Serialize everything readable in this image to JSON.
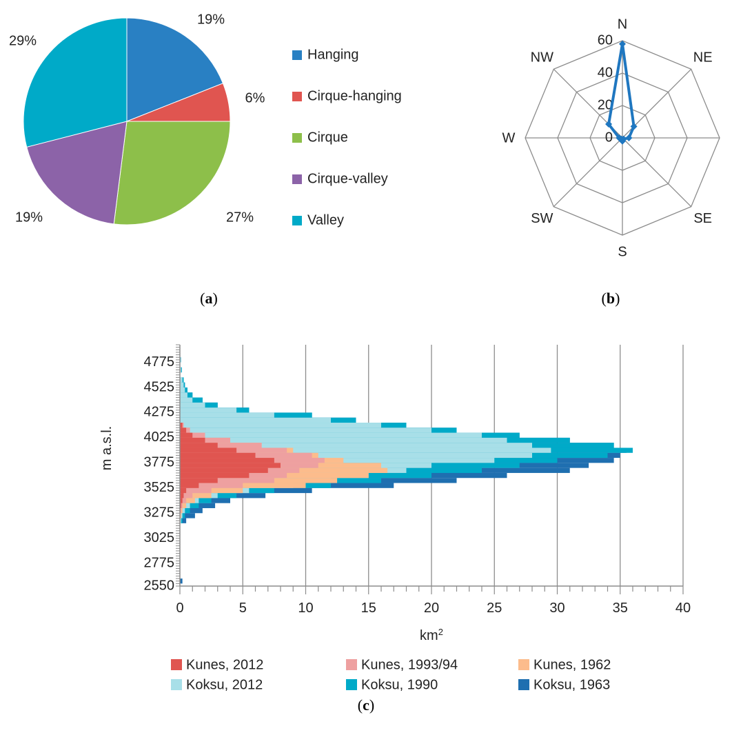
{
  "chart_data": [
    {
      "panel": "(a)",
      "type": "pie",
      "title": "",
      "series": [
        {
          "name": "Hanging",
          "value": 19,
          "label": "19%",
          "color": "#2980c3"
        },
        {
          "name": "Cirque-hanging",
          "value": 6,
          "label": "6%",
          "color": "#e05550"
        },
        {
          "name": "Cirque",
          "value": 27,
          "label": "27%",
          "color": "#8dbf4a"
        },
        {
          "name": "Cirque-valley",
          "value": 19,
          "label": "19%",
          "color": "#8c63a8"
        },
        {
          "name": "Valley",
          "value": 29,
          "label": "29%",
          "color": "#00aac8"
        }
      ],
      "legend_position": "right"
    },
    {
      "panel": "(b)",
      "type": "radar",
      "title": "",
      "categories": [
        "N",
        "NE",
        "E",
        "SE",
        "S",
        "SW",
        "W",
        "NW"
      ],
      "values": [
        58,
        10,
        4,
        1,
        2,
        1,
        2,
        12
      ],
      "range": [
        0,
        60
      ],
      "ticks": [
        "0",
        "20",
        "40",
        "60"
      ],
      "line_color": "#1f77c0"
    },
    {
      "panel": "(c)",
      "type": "bar",
      "orientation": "horizontal",
      "title": "",
      "xlabel": "km",
      "xlabel_sup": "2",
      "ylabel": "m a.s.l.",
      "xlim": [
        0,
        40
      ],
      "ylim": [
        2550,
        4950
      ],
      "xticks": [
        "0",
        "5",
        "10",
        "15",
        "20",
        "25",
        "30",
        "35",
        "40"
      ],
      "yticks": [
        "4775",
        "4525",
        "4275",
        "4025",
        "3775",
        "3525",
        "3275",
        "3025",
        "2775",
        "2550"
      ],
      "grid": "vertical",
      "legend_position": "bottom",
      "elevation_bands": [
        {
          "elev": 3200,
          "k2012": 0,
          "k1993": 0,
          "k1962": 0,
          "x2012": 0.1,
          "x1990": 0.2,
          "x1963": 0.5
        },
        {
          "elev": 3250,
          "k2012": 0,
          "k1993": 0,
          "k1962": 0.1,
          "x2012": 0.2,
          "x1990": 0.4,
          "x1963": 1.2
        },
        {
          "elev": 3300,
          "k2012": 0.05,
          "k1993": 0.1,
          "k1962": 0.2,
          "x2012": 0.4,
          "x1990": 0.8,
          "x1963": 1.8
        },
        {
          "elev": 3350,
          "k2012": 0.1,
          "k1993": 0.2,
          "k1962": 0.5,
          "x2012": 0.8,
          "x1990": 1.5,
          "x1963": 2.8
        },
        {
          "elev": 3400,
          "k2012": 0.2,
          "k1993": 0.5,
          "k1962": 1.2,
          "x2012": 1.5,
          "x1990": 2.5,
          "x1963": 4.0
        },
        {
          "elev": 3450,
          "k2012": 0.3,
          "k1993": 1.0,
          "k1962": 2.5,
          "x2012": 3.0,
          "x1990": 4.5,
          "x1963": 6.8
        },
        {
          "elev": 3500,
          "k2012": 0.5,
          "k1993": 2.5,
          "k1962": 5.0,
          "x2012": 5.5,
          "x1990": 7.5,
          "x1963": 10.5
        },
        {
          "elev": 3550,
          "k2012": 1.5,
          "k1993": 5.0,
          "k1962": 10.0,
          "x2012": 9.0,
          "x1990": 12.0,
          "x1963": 17.0
        },
        {
          "elev": 3600,
          "k2012": 3.0,
          "k1993": 7.5,
          "k1962": 12.5,
          "x2012": 12.0,
          "x1990": 16.0,
          "x1963": 22.0
        },
        {
          "elev": 3650,
          "k2012": 5.5,
          "k1993": 8.5,
          "k1962": 15.0,
          "x2012": 15.0,
          "x1990": 20.0,
          "x1963": 26.0
        },
        {
          "elev": 3700,
          "k2012": 7.0,
          "k1993": 9.5,
          "k1962": 16.5,
          "x2012": 18.0,
          "x1990": 24.0,
          "x1963": 31.0
        },
        {
          "elev": 3750,
          "k2012": 8.0,
          "k1993": 11.0,
          "k1962": 16.0,
          "x2012": 20.0,
          "x1990": 27.0,
          "x1963": 32.5
        },
        {
          "elev": 3800,
          "k2012": 7.5,
          "k1993": 11.5,
          "k1962": 13.0,
          "x2012": 25.0,
          "x1990": 30.0,
          "x1963": 34.5
        },
        {
          "elev": 3850,
          "k2012": 6.0,
          "k1993": 10.5,
          "k1962": 11.0,
          "x2012": 28.0,
          "x1990": 34.0,
          "x1963": 35.0
        },
        {
          "elev": 3900,
          "k2012": 4.5,
          "k1993": 8.5,
          "k1962": 9.0,
          "x2012": 29.5,
          "x1990": 36.0,
          "x1963": 35.5
        },
        {
          "elev": 3950,
          "k2012": 3.0,
          "k1993": 6.5,
          "k1962": 6.5,
          "x2012": 28.0,
          "x1990": 34.5,
          "x1963": 34.5
        },
        {
          "elev": 4000,
          "k2012": 2.0,
          "k1993": 4.0,
          "k1962": 4.0,
          "x2012": 26.0,
          "x1990": 31.0,
          "x1963": 31.0
        },
        {
          "elev": 4050,
          "k2012": 1.0,
          "k1993": 2.0,
          "k1962": 2.0,
          "x2012": 24.0,
          "x1990": 27.0,
          "x1963": 27.0
        },
        {
          "elev": 4100,
          "k2012": 0.5,
          "k1993": 0.8,
          "k1962": 0.8,
          "x2012": 20.0,
          "x1990": 22.0,
          "x1963": 22.0
        },
        {
          "elev": 4150,
          "k2012": 0.2,
          "k1993": 0.3,
          "k1962": 0.3,
          "x2012": 16.0,
          "x1990": 18.0,
          "x1963": 18.0
        },
        {
          "elev": 4200,
          "k2012": 0,
          "k1993": 0,
          "k1962": 0,
          "x2012": 12.0,
          "x1990": 14.0,
          "x1963": 14.0
        },
        {
          "elev": 4250,
          "k2012": 0,
          "k1993": 0,
          "k1962": 0,
          "x2012": 7.5,
          "x1990": 10.5,
          "x1963": 10.5
        },
        {
          "elev": 4300,
          "k2012": 0,
          "k1993": 0,
          "k1962": 0,
          "x2012": 4.5,
          "x1990": 5.5,
          "x1963": 5.5
        },
        {
          "elev": 4350,
          "k2012": 0,
          "k1993": 0,
          "k1962": 0,
          "x2012": 2.0,
          "x1990": 3.0,
          "x1963": 3.0
        },
        {
          "elev": 4400,
          "k2012": 0,
          "k1993": 0,
          "k1962": 0,
          "x2012": 1.0,
          "x1990": 1.8,
          "x1963": 1.8
        },
        {
          "elev": 4450,
          "k2012": 0,
          "k1993": 0,
          "k1962": 0,
          "x2012": 0.6,
          "x1990": 1.0,
          "x1963": 1.0
        },
        {
          "elev": 4500,
          "k2012": 0,
          "k1993": 0,
          "k1962": 0,
          "x2012": 0.4,
          "x1990": 0.6,
          "x1963": 0.6
        },
        {
          "elev": 4550,
          "k2012": 0,
          "k1993": 0,
          "k1962": 0,
          "x2012": 0.3,
          "x1990": 0.4,
          "x1963": 0.4
        },
        {
          "elev": 4600,
          "k2012": 0,
          "k1993": 0,
          "k1962": 0,
          "x2012": 0.2,
          "x1990": 0.3,
          "x1963": 0.3
        },
        {
          "elev": 4700,
          "k2012": 0,
          "k1993": 0,
          "k1962": 0,
          "x2012": 0.1,
          "x1990": 0.15,
          "x1963": 0.15
        },
        {
          "elev": 4800,
          "k2012": 0,
          "k1993": 0,
          "k1962": 0,
          "x2012": 0.05,
          "x1990": 0.08,
          "x1963": 0.08
        },
        {
          "elev": 2600,
          "k2012": 0,
          "k1993": 0,
          "k1962": 0,
          "x2012": 0,
          "x1990": 0,
          "x1963": 0.2
        }
      ],
      "series": [
        {
          "key": "k2012",
          "name": "Kunes, 2012",
          "color": "#e05550"
        },
        {
          "key": "k1993",
          "name": "Kunes, 1993/94",
          "color": "#eea0a0"
        },
        {
          "key": "k1962",
          "name": "Kunes, 1962",
          "color": "#fcbc8c"
        },
        {
          "key": "x2012",
          "name": "Koksu, 2012",
          "color": "#a8dfe8"
        },
        {
          "key": "x1990",
          "name": "Koksu, 1990",
          "color": "#00aac8"
        },
        {
          "key": "x1963",
          "name": "Koksu, 1963",
          "color": "#1f6fb0"
        }
      ]
    }
  ],
  "captions": {
    "a": {
      "open": "(",
      "letter": "a",
      "close": ")"
    },
    "b": {
      "open": "(",
      "letter": "b",
      "close": ")"
    },
    "c": {
      "open": "(",
      "letter": "c",
      "close": ")"
    }
  }
}
